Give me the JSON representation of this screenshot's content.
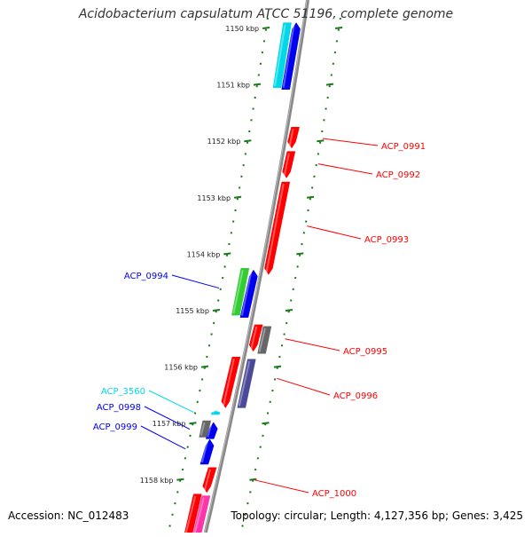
{
  "title": "Acidobacterium capsulatum ATCC 51196, complete genome",
  "accession": "Accession: NC_012483",
  "topology": "Topology: circular; Length: 4,127,356 bp; Genes: 3,425",
  "colors": {
    "axis": "#888888",
    "tick": "#1a7a1a",
    "red": "#ff0000",
    "blue": "#0000ee",
    "cyan": "#00d8e8",
    "green": "#33cc33",
    "gray": "#666666",
    "slate": "#4a4a99",
    "pink": "#ff33aa"
  },
  "ticks": [
    {
      "kbp": 1150,
      "label": "1150 kbp"
    },
    {
      "kbp": 1151,
      "label": "1151 kbp"
    },
    {
      "kbp": 1152,
      "label": "1152 kbp"
    },
    {
      "kbp": 1153,
      "label": "1153 kbp"
    },
    {
      "kbp": 1154,
      "label": "1154 kbp"
    },
    {
      "kbp": 1155,
      "label": "1155 kbp"
    },
    {
      "kbp": 1156,
      "label": "1156 kbp"
    },
    {
      "kbp": 1157,
      "label": "1157 kbp"
    },
    {
      "kbp": 1158,
      "label": "1158 kbp"
    }
  ],
  "genes": [
    {
      "name": "ACP_0991",
      "label": "ACP_0991",
      "color": "red",
      "lane": "r1",
      "start": 1151.75,
      "end": 1152.12,
      "dir": "rev"
    },
    {
      "name": "ACP_0992",
      "label": "ACP_0992",
      "color": "red",
      "lane": "r1",
      "start": 1152.18,
      "end": 1152.65,
      "dir": "rev"
    },
    {
      "name": "ACP_0993",
      "label": "ACP_0993",
      "color": "red",
      "lane": "r1",
      "start": 1152.72,
      "end": 1154.36,
      "dir": "rev"
    },
    {
      "name": "ACP_0994",
      "label": "ACP_0994",
      "color": "green",
      "lane": "l2",
      "start": 1154.25,
      "end": 1155.08,
      "dir": "none"
    },
    {
      "name": "ACP_0994b",
      "label": "",
      "color": "blue",
      "lane": "l1",
      "start": 1154.28,
      "end": 1155.12,
      "dir": "fwd"
    },
    {
      "name": "ACP_0995",
      "label": "ACP_0995",
      "color": "red",
      "lane": "r1",
      "start": 1155.25,
      "end": 1155.72,
      "dir": "rev"
    },
    {
      "name": "ACP_0995b",
      "label": "",
      "color": "gray",
      "lane": "r2",
      "start": 1155.28,
      "end": 1155.76,
      "dir": "none"
    },
    {
      "name": "ACP_0996",
      "label": "ACP_0996",
      "color": "red",
      "lane": "l1",
      "start": 1155.82,
      "end": 1156.72,
      "dir": "rev"
    },
    {
      "name": "ACP_0996b",
      "label": "",
      "color": "slate",
      "lane": "r1",
      "start": 1155.86,
      "end": 1156.72,
      "dir": "none"
    },
    {
      "name": "ACP_3560",
      "label": "ACP_3560",
      "color": "cyan",
      "lane": "l2",
      "start": 1156.78,
      "end": 1156.84,
      "dir": "fwd"
    },
    {
      "name": "ACP_0998",
      "label": "ACP_0998",
      "color": "gray",
      "lane": "l3",
      "start": 1156.95,
      "end": 1157.24,
      "dir": "none"
    },
    {
      "name": "ACP_0998b",
      "label": "",
      "color": "blue",
      "lane": "l2",
      "start": 1156.98,
      "end": 1157.27,
      "dir": "fwd"
    },
    {
      "name": "ACP_0999",
      "label": "ACP_0999",
      "color": "blue",
      "lane": "l2",
      "start": 1157.28,
      "end": 1157.72,
      "dir": "fwd"
    },
    {
      "name": "ACP_1000",
      "label": "ACP_1000",
      "color": "red",
      "lane": "l1",
      "start": 1157.78,
      "end": 1158.22,
      "dir": "rev"
    },
    {
      "name": "ACP_1000b",
      "label": "",
      "color": "red",
      "lane": "l2",
      "start": 1158.25,
      "end": 1159.0,
      "dir": "none"
    },
    {
      "name": "ACP_1001",
      "label": "",
      "color": "pink",
      "lane": "l1",
      "start": 1158.28,
      "end": 1159.0,
      "dir": "none"
    },
    {
      "name": "ACP_0989",
      "label": "",
      "color": "cyan",
      "lane": "l2",
      "start": 1149.9,
      "end": 1151.05,
      "dir": "none"
    },
    {
      "name": "ACP_0990",
      "label": "",
      "color": "blue",
      "lane": "l1",
      "start": 1149.9,
      "end": 1151.08,
      "dir": "fwd"
    }
  ]
}
